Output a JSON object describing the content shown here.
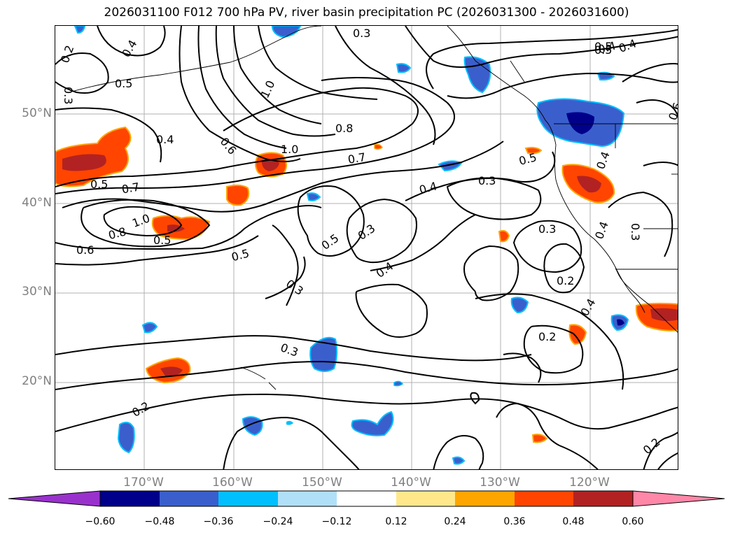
{
  "title": "2026031100 F012 700 hPa PV, river basin precipitation PC (2026031300 - 2026031600)",
  "axes": {
    "lat_labels": [
      "50°N",
      "40°N",
      "30°N",
      "20°N"
    ],
    "lon_labels": [
      "170°W",
      "160°W",
      "150°W",
      "140°W",
      "130°W",
      "120°W"
    ],
    "grid": true
  },
  "contour_labels": [
    "0.2",
    "0.4",
    "0.5",
    "0.3",
    "0.5",
    "0.4",
    "0.3",
    "0.4",
    "0.6",
    "1.0",
    "0.8",
    "1.0",
    "0.7",
    "0.5",
    "0.5",
    "0.7",
    "1.0",
    "0.8",
    "0.6",
    "0.5",
    "0.4",
    "0.3",
    "0.5",
    "0.5",
    "0.3",
    "0.4",
    "0.3",
    "0.3",
    "0.2",
    "0.2",
    "0.3",
    "0.2",
    "0.4",
    "0.2",
    "0.5",
    "0.4",
    "0.4",
    "0.3",
    "0.4",
    "0.6"
  ],
  "colorbar": {
    "ticks": [
      "−0.60",
      "−0.48",
      "−0.36",
      "−0.24",
      "−0.12",
      "0.12",
      "0.24",
      "0.36",
      "0.48",
      "0.60"
    ],
    "colors": [
      "#9932cc",
      "#00008b",
      "#3a5fcd",
      "#00bfff",
      "#b0e0f8",
      "#ffffff",
      "#ffe88a",
      "#ffa500",
      "#ff4500",
      "#b22222",
      "#ff87a8"
    ]
  },
  "fill_colors": {
    "neg_light": "#00bfff",
    "neg_mid": "#3a5fcd",
    "neg_dark": "#00008b",
    "pos_light": "#ffa500",
    "pos_mid": "#ff4500",
    "pos_dark": "#b22222"
  }
}
